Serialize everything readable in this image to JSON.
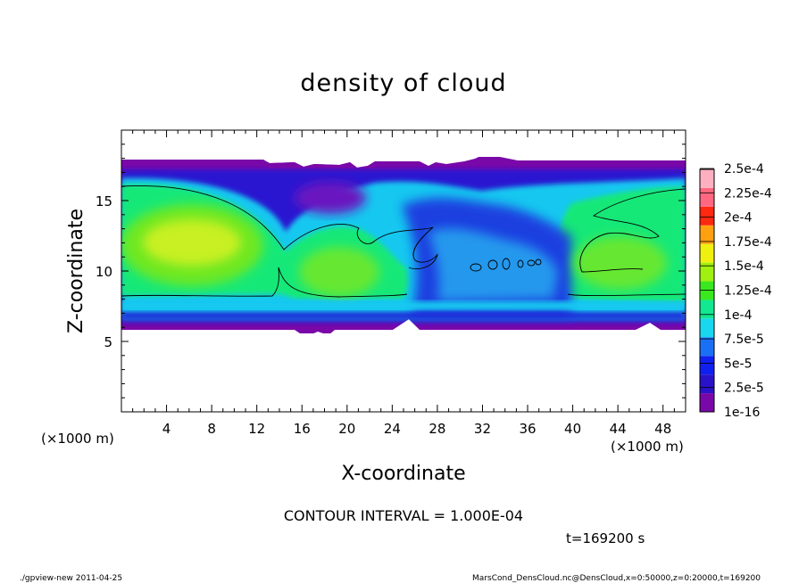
{
  "chart_data": {
    "type": "heatmap",
    "title": "density of cloud",
    "xlabel": "X-coordinate",
    "ylabel": "Z-coordinate",
    "x_unit_left": "(×1000 m)",
    "x_unit_right": "(×1000 m)",
    "xlim": [
      0,
      50
    ],
    "ylim": [
      0,
      20
    ],
    "x_ticks": [
      4,
      8,
      12,
      16,
      20,
      24,
      28,
      32,
      36,
      40,
      44,
      48
    ],
    "y_ticks": [
      5,
      10,
      15
    ],
    "colorbar": {
      "levels": [
        "1e-16",
        "2.5e-5",
        "5e-5",
        "7.5e-5",
        "1e-4",
        "1.25e-4",
        "1.5e-4",
        "1.75e-4",
        "2e-4",
        "2.25e-4",
        "2.5e-4"
      ],
      "colors": [
        "#7a08a8",
        "#2a12c8",
        "#1020f0",
        "#1a70f5",
        "#18d8f0",
        "#12e890",
        "#3ae820",
        "#a0f010",
        "#f0f010",
        "#ffa010",
        "#ff2810",
        "#ff6880",
        "#ffb0c0"
      ]
    },
    "contour_interval_label": "CONTOUR INTERVAL = 1.000E-04",
    "time_label": "t=169200 s",
    "grid": false
  },
  "footer": {
    "left": "./gpview-new  2011-04-25",
    "right": "MarsCond_DensCloud.nc@DensCloud,x=0:50000,z=0:20000,t=169200"
  }
}
